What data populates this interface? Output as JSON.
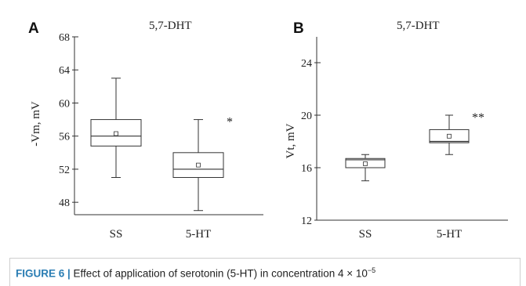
{
  "chart_data": [
    {
      "type": "box",
      "panel_label": "A",
      "title": "5,7-DHT",
      "ylabel": "-Vm, mV",
      "ylim": [
        46.5,
        68
      ],
      "yticks": [
        48,
        52,
        56,
        60,
        64,
        68
      ],
      "categories": [
        "SS",
        "5-HT"
      ],
      "boxes": [
        {
          "min": 51,
          "q1": 54.8,
          "median": 56,
          "q3": 58,
          "max": 63,
          "mean": 56.3,
          "significance": ""
        },
        {
          "min": 47,
          "q1": 51,
          "median": 52,
          "q3": 54,
          "max": 58,
          "mean": 52.5,
          "significance": "*"
        }
      ]
    },
    {
      "type": "box",
      "panel_label": "B",
      "title": "5,7-DHT",
      "ylabel": "Vt, mV",
      "ylim": [
        12,
        28
      ],
      "yticks": [
        12,
        16,
        20,
        24
      ],
      "categories": [
        "SS",
        "5-HT"
      ],
      "boxes": [
        {
          "min": 15,
          "q1": 16,
          "median": 16.6,
          "q3": 16.7,
          "max": 17,
          "mean": 16.3,
          "significance": ""
        },
        {
          "min": 17,
          "q1": 17.9,
          "median": 18,
          "q3": 18.9,
          "max": 20,
          "mean": 18.4,
          "significance": "**"
        }
      ]
    }
  ],
  "caption": {
    "label": "FIGURE 6 |",
    "text": " Effect of application of serotonin (5-HT) in concentration 4 × 10",
    "exponent": "−5"
  }
}
